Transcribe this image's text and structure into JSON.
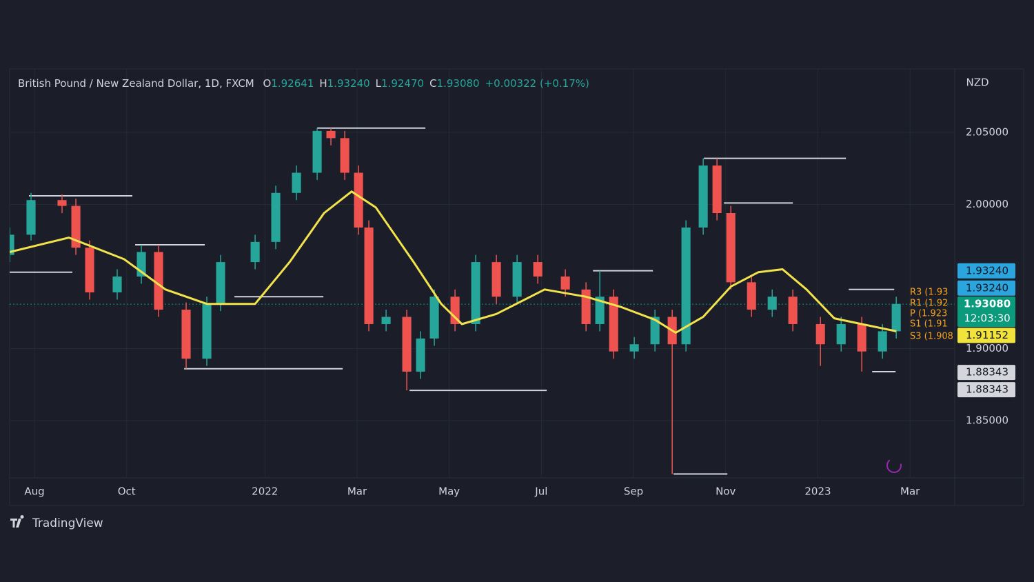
{
  "chart_data": {
    "type": "candlestick",
    "legend": {
      "symbol": "British Pound / New Zealand Dollar, 1D, FXCM",
      "fields": [
        {
          "key": "O",
          "value": "1.92641"
        },
        {
          "key": "H",
          "value": "1.93240"
        },
        {
          "key": "L",
          "value": "1.92470"
        },
        {
          "key": "C",
          "value": "1.93080"
        }
      ],
      "change": "+0.00322 (+0.17%)"
    },
    "currency": "NZD",
    "brand": "TradingView",
    "up_color": "#26a69a",
    "down_color": "#ef5350",
    "grid": true,
    "x": [
      0.461,
      0.925,
      1.598,
      1.898,
      2.197,
      2.795,
      3.319,
      3.693,
      4.291,
      4.74,
      5.039,
      5.788,
      6.236,
      6.685,
      7.134,
      7.433,
      7.733,
      8.032,
      8.256,
      8.63,
      9.079,
      9.378,
      9.677,
      10.126,
      10.575,
      11.024,
      11.473,
      11.922,
      12.52,
      12.969,
      13.268,
      13.568,
      14.016,
      14.465,
      14.839,
      15.138,
      15.512,
      15.811,
      16.111,
      16.56,
      17.009,
      17.457,
      18.056,
      18.505,
      18.953,
      19.402,
      19.701
    ],
    "open": [
      1.965,
      1.979,
      2.003,
      1.999,
      1.97,
      1.939,
      1.95,
      1.967,
      1.927,
      1.893,
      1.931,
      1.96,
      1.974,
      2.008,
      2.022,
      2.051,
      2.046,
      2.022,
      1.984,
      1.917,
      1.922,
      1.884,
      1.907,
      1.936,
      1.917,
      1.96,
      1.936,
      1.96,
      1.95,
      1.941,
      1.917,
      1.936,
      1.898,
      1.903,
      1.922,
      1.903,
      1.984,
      2.027,
      1.994,
      1.946,
      1.927,
      1.936,
      1.917,
      1.903,
      1.917,
      1.898,
      1.912
    ],
    "high": [
      1.984,
      2.008,
      2.007,
      2.004,
      1.975,
      1.955,
      1.972,
      1.972,
      1.932,
      1.936,
      1.965,
      1.979,
      2.013,
      2.027,
      2.053,
      2.053,
      2.051,
      2.027,
      1.989,
      1.927,
      1.927,
      1.912,
      1.941,
      1.941,
      1.965,
      1.965,
      1.965,
      1.965,
      1.955,
      1.946,
      1.954,
      1.941,
      1.908,
      1.927,
      1.927,
      1.989,
      2.032,
      2.032,
      1.999,
      1.951,
      1.941,
      1.941,
      1.922,
      1.922,
      1.922,
      1.917,
      1.936
    ],
    "low": [
      1.96,
      1.975,
      1.994,
      1.965,
      1.934,
      1.934,
      1.945,
      1.922,
      1.886,
      1.888,
      1.926,
      1.955,
      1.969,
      2.003,
      2.017,
      2.041,
      2.017,
      1.979,
      1.912,
      1.912,
      1.871,
      1.879,
      1.902,
      1.912,
      1.912,
      1.931,
      1.931,
      1.945,
      1.936,
      1.912,
      1.912,
      1.893,
      1.893,
      1.898,
      1.813,
      1.898,
      1.979,
      1.989,
      1.941,
      1.922,
      1.922,
      1.912,
      1.888,
      1.898,
      1.884,
      1.893,
      1.907
    ],
    "close": [
      1.979,
      2.003,
      1.999,
      1.97,
      1.939,
      1.95,
      1.967,
      1.927,
      1.893,
      1.931,
      1.96,
      1.974,
      2.008,
      2.022,
      2.051,
      2.046,
      2.022,
      1.984,
      1.917,
      1.922,
      1.884,
      1.907,
      1.936,
      1.917,
      1.96,
      1.936,
      1.96,
      1.95,
      1.941,
      1.917,
      1.936,
      1.898,
      1.903,
      1.922,
      1.903,
      1.984,
      2.027,
      1.994,
      1.946,
      1.927,
      1.936,
      1.917,
      1.903,
      1.917,
      1.898,
      1.912,
      1.931
    ],
    "overlay": {
      "type": "line",
      "color": "#f2e34c",
      "x": [
        0.461,
        1.748,
        2.945,
        3.843,
        4.74,
        5.788,
        6.536,
        7.284,
        7.882,
        8.406,
        9.229,
        9.827,
        10.276,
        11.024,
        12.071,
        12.969,
        13.717,
        14.465,
        14.914,
        15.512,
        16.111,
        16.709,
        17.233,
        17.756,
        18.355,
        18.953,
        19.701
      ],
      "values": [
        1.967,
        1.977,
        1.962,
        1.941,
        1.931,
        1.931,
        1.96,
        1.994,
        2.009,
        1.998,
        1.96,
        1.931,
        1.917,
        1.924,
        1.941,
        1.936,
        1.929,
        1.92,
        1.911,
        1.922,
        1.943,
        1.953,
        1.955,
        1.941,
        1.921,
        1.917,
        1.912
      ]
    },
    "levels": [
      {
        "x": [
          0.88,
          3.124
        ],
        "value": 2.006
      },
      {
        "x": [
          7.134,
          9.483
        ],
        "value": 2.053
      },
      {
        "x": [
          4.247,
          7.688
        ],
        "value": 1.886
      },
      {
        "x": [
          9.139,
          12.116
        ],
        "value": 1.871
      },
      {
        "x": [
          15.527,
          18.609
        ],
        "value": 2.032
      },
      {
        "x": [
          15.961,
          17.457
        ],
        "value": 2.001
      },
      {
        "x": [
          14.869,
          16.036
        ],
        "value": 1.813
      },
      {
        "x": [
          3.184,
          4.695
        ],
        "value": 1.972
      },
      {
        "x": [
          5.339,
          7.269
        ],
        "value": 1.936
      },
      {
        "x": [
          13.119,
          14.42
        ],
        "value": 1.954
      },
      {
        "x": [
          19.178,
          19.687
        ],
        "value": 1.884
      },
      {
        "x": [
          18.669,
          19.657
        ],
        "value": 1.941
      },
      {
        "x": [
          0.461,
          1.823
        ],
        "value": 1.953
      }
    ],
    "level_color": "#d1d4dc",
    "pivot_labels": [
      "R3 (1.93",
      "R1 (1.92",
      "P (1.923",
      "S1 (1.91",
      "S3 (1.908"
    ],
    "price_labels": [
      {
        "value": 1.9324,
        "label": "1.93240",
        "color": "#2ba5de"
      },
      {
        "value": 1.9324,
        "label": "1.93240",
        "color": "#2ba5de"
      },
      {
        "value": 1.9308,
        "label": "1.93080",
        "sublabel": "12:03:30",
        "color": "#0b9a7c"
      },
      {
        "value": 1.91152,
        "label": "1.91152",
        "color": "#f2e33a"
      },
      {
        "value": 1.88343,
        "label": "1.88343",
        "color": "#d4d6dc"
      },
      {
        "value": 1.88343,
        "label": "1.88343",
        "color": "#d4d6dc"
      }
    ],
    "xlim": [
      0.461,
      20.97
    ],
    "ylim": [
      1.8103,
      2.094
    ],
    "xticks": [
      {
        "value": 1,
        "label": "Aug"
      },
      {
        "value": 3,
        "label": "Oct"
      },
      {
        "value": 6,
        "label": "2022"
      },
      {
        "value": 8,
        "label": "Mar"
      },
      {
        "value": 10,
        "label": "May"
      },
      {
        "value": 12,
        "label": "Jul"
      },
      {
        "value": 14,
        "label": "Sep"
      },
      {
        "value": 16,
        "label": "Nov"
      },
      {
        "value": 18,
        "label": "2023"
      },
      {
        "value": 20,
        "label": "Mar"
      }
    ],
    "yticks": [
      {
        "value": 1.85,
        "label": "1.85000"
      },
      {
        "value": 1.9,
        "label": "1.90000"
      },
      {
        "value": 2.0,
        "label": "2.00000"
      },
      {
        "value": 2.05,
        "label": "2.05000"
      }
    ]
  }
}
